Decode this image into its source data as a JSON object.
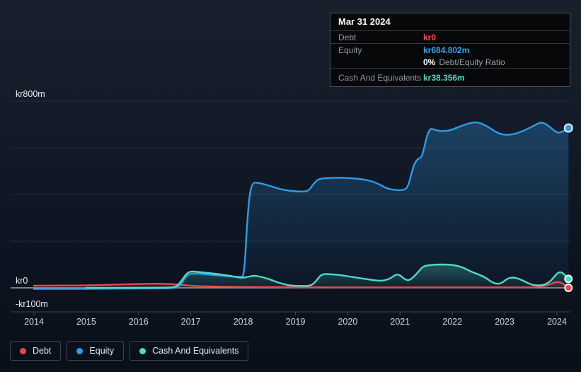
{
  "colors": {
    "debt": "#e5494d",
    "equity": "#2d9bea",
    "cash": "#52dac2",
    "grid_line": "#232e3b",
    "zero_line": "#99a1a9",
    "axis_line": "#3a4450",
    "axis_label": "#e8ecef",
    "year_label": "#d2d7dc",
    "tooltip_debt_value": "#f04f4f",
    "tooltip_equity_value": "#3aa0e8",
    "tooltip_cash_value": "#50d8c2"
  },
  "tooltip": {
    "date": "Mar 31 2024",
    "debt_label": "Debt",
    "debt_value": "kr0",
    "equity_label": "Equity",
    "equity_value": "kr684.802m",
    "ratio_value": "0%",
    "ratio_label": "Debt/Equity Ratio",
    "cash_label": "Cash And Equivalents",
    "cash_value": "kr38.356m"
  },
  "legend": {
    "items": [
      {
        "label": "Debt"
      },
      {
        "label": "Equity"
      },
      {
        "label": "Cash And Equivalents"
      }
    ]
  },
  "chart_data": {
    "type": "area",
    "x_range": [
      2014,
      2024.35
    ],
    "x_ticks": [
      "2014",
      "2015",
      "2016",
      "2017",
      "2018",
      "2019",
      "2020",
      "2021",
      "2022",
      "2023",
      "2024"
    ],
    "y_axis": {
      "unit": "kr millions",
      "range": [
        -100,
        800
      ],
      "gridline_values": [
        800,
        600,
        400,
        200,
        0
      ],
      "tick_labels": [
        {
          "value": 800,
          "label": "kr800m"
        },
        {
          "value": 0,
          "label": "kr0"
        },
        {
          "value": -100,
          "label": "-kr100m"
        }
      ]
    },
    "series": [
      {
        "name": "Debt",
        "color": "#e5494d",
        "points": [
          [
            2014.0,
            9
          ],
          [
            2014.4,
            10
          ],
          [
            2014.8,
            10
          ],
          [
            2015.2,
            12
          ],
          [
            2015.6,
            14
          ],
          [
            2015.9,
            16
          ],
          [
            2016.15,
            17
          ],
          [
            2016.45,
            18
          ],
          [
            2016.7,
            15
          ],
          [
            2016.9,
            11
          ],
          [
            2017.1,
            8
          ],
          [
            2017.35,
            6
          ],
          [
            2017.6,
            5
          ],
          [
            2017.9,
            4
          ],
          [
            2018.3,
            4
          ],
          [
            2018.7,
            3
          ],
          [
            2019.1,
            3
          ],
          [
            2019.5,
            2
          ],
          [
            2020.0,
            2
          ],
          [
            2020.5,
            2
          ],
          [
            2021.0,
            2
          ],
          [
            2021.5,
            2
          ],
          [
            2022.0,
            2
          ],
          [
            2022.5,
            2
          ],
          [
            2023.0,
            2
          ],
          [
            2023.4,
            2
          ],
          [
            2023.6,
            3
          ],
          [
            2023.78,
            8
          ],
          [
            2023.92,
            20
          ],
          [
            2024.0,
            26
          ],
          [
            2024.08,
            23
          ],
          [
            2024.15,
            12
          ],
          [
            2024.22,
            0
          ]
        ]
      },
      {
        "name": "Equity",
        "color": "#2d9bea",
        "points": [
          [
            2014.0,
            -5
          ],
          [
            2014.4,
            -5
          ],
          [
            2014.8,
            -5
          ],
          [
            2015.2,
            -4
          ],
          [
            2015.6,
            -3
          ],
          [
            2016.0,
            -3
          ],
          [
            2016.4,
            -2
          ],
          [
            2016.7,
            -1
          ],
          [
            2016.8,
            10
          ],
          [
            2016.92,
            55
          ],
          [
            2017.05,
            62
          ],
          [
            2017.25,
            59
          ],
          [
            2017.5,
            54
          ],
          [
            2017.75,
            49
          ],
          [
            2017.95,
            46
          ],
          [
            2018.02,
            50
          ],
          [
            2018.08,
            300
          ],
          [
            2018.15,
            452
          ],
          [
            2018.3,
            450
          ],
          [
            2018.5,
            438
          ],
          [
            2018.7,
            423
          ],
          [
            2018.9,
            415
          ],
          [
            2019.1,
            412
          ],
          [
            2019.25,
            414
          ],
          [
            2019.35,
            448
          ],
          [
            2019.45,
            468
          ],
          [
            2019.65,
            471
          ],
          [
            2019.85,
            472
          ],
          [
            2020.05,
            470
          ],
          [
            2020.25,
            466
          ],
          [
            2020.45,
            458
          ],
          [
            2020.6,
            444
          ],
          [
            2020.75,
            425
          ],
          [
            2020.9,
            419
          ],
          [
            2021.05,
            418
          ],
          [
            2021.15,
            428
          ],
          [
            2021.25,
            520
          ],
          [
            2021.33,
            553
          ],
          [
            2021.42,
            558
          ],
          [
            2021.5,
            640
          ],
          [
            2021.57,
            683
          ],
          [
            2021.65,
            679
          ],
          [
            2021.75,
            671
          ],
          [
            2021.88,
            672
          ],
          [
            2022.0,
            678
          ],
          [
            2022.15,
            692
          ],
          [
            2022.3,
            704
          ],
          [
            2022.45,
            711
          ],
          [
            2022.6,
            701
          ],
          [
            2022.75,
            680
          ],
          [
            2022.88,
            662
          ],
          [
            2023.0,
            655
          ],
          [
            2023.15,
            657
          ],
          [
            2023.3,
            667
          ],
          [
            2023.5,
            688
          ],
          [
            2023.65,
            706
          ],
          [
            2023.72,
            709
          ],
          [
            2023.82,
            698
          ],
          [
            2023.95,
            672
          ],
          [
            2024.02,
            664
          ],
          [
            2024.1,
            668
          ],
          [
            2024.22,
            684.8
          ]
        ]
      },
      {
        "name": "Cash And Equivalents",
        "color": "#52dac2",
        "points": [
          [
            2015.0,
            0
          ],
          [
            2015.4,
            0
          ],
          [
            2015.8,
            0.5
          ],
          [
            2016.2,
            1
          ],
          [
            2016.55,
            1
          ],
          [
            2016.72,
            3
          ],
          [
            2016.82,
            30
          ],
          [
            2016.92,
            62
          ],
          [
            2017.0,
            71
          ],
          [
            2017.15,
            68
          ],
          [
            2017.35,
            63
          ],
          [
            2017.55,
            58
          ],
          [
            2017.75,
            52
          ],
          [
            2017.95,
            42
          ],
          [
            2018.1,
            47
          ],
          [
            2018.2,
            53
          ],
          [
            2018.35,
            47
          ],
          [
            2018.5,
            37
          ],
          [
            2018.65,
            24
          ],
          [
            2018.82,
            13
          ],
          [
            2018.95,
            9
          ],
          [
            2019.15,
            8
          ],
          [
            2019.3,
            9
          ],
          [
            2019.4,
            30
          ],
          [
            2019.5,
            60
          ],
          [
            2019.65,
            59
          ],
          [
            2019.85,
            55
          ],
          [
            2020.05,
            48
          ],
          [
            2020.25,
            41
          ],
          [
            2020.45,
            34
          ],
          [
            2020.65,
            29
          ],
          [
            2020.8,
            38
          ],
          [
            2020.92,
            58
          ],
          [
            2021.0,
            55
          ],
          [
            2021.08,
            38
          ],
          [
            2021.17,
            30
          ],
          [
            2021.3,
            55
          ],
          [
            2021.42,
            88
          ],
          [
            2021.5,
            96
          ],
          [
            2021.7,
            100
          ],
          [
            2021.9,
            100
          ],
          [
            2022.05,
            97
          ],
          [
            2022.2,
            88
          ],
          [
            2022.35,
            70
          ],
          [
            2022.5,
            58
          ],
          [
            2022.65,
            42
          ],
          [
            2022.75,
            25
          ],
          [
            2022.85,
            16
          ],
          [
            2022.95,
            21
          ],
          [
            2023.05,
            40
          ],
          [
            2023.15,
            45
          ],
          [
            2023.25,
            41
          ],
          [
            2023.38,
            28
          ],
          [
            2023.5,
            14
          ],
          [
            2023.62,
            10
          ],
          [
            2023.75,
            12
          ],
          [
            2023.88,
            28
          ],
          [
            2024.0,
            62
          ],
          [
            2024.07,
            69
          ],
          [
            2024.14,
            58
          ],
          [
            2024.22,
            38.356
          ]
        ]
      }
    ]
  }
}
